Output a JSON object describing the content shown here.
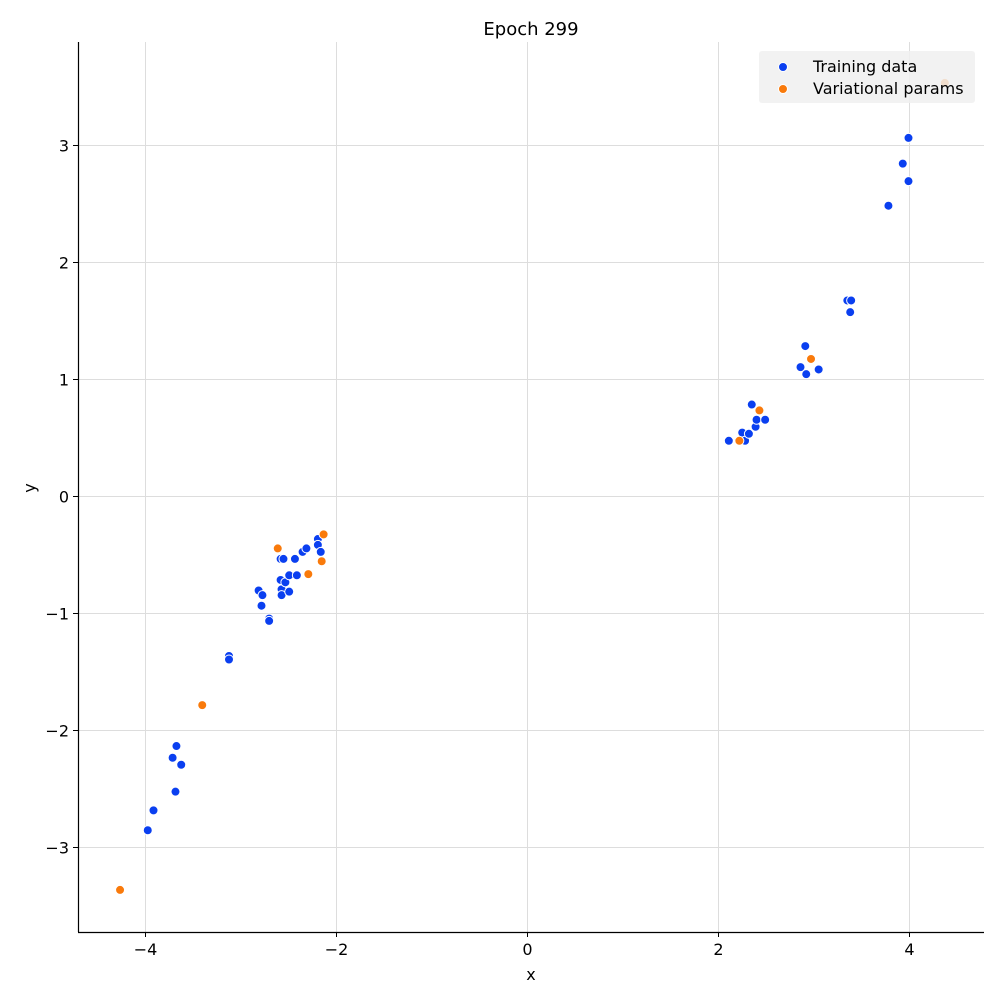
{
  "chart_data": {
    "type": "scatter",
    "title": "Epoch 299",
    "xlabel": "x",
    "ylabel": "y",
    "xlim": [
      -4.7,
      4.78
    ],
    "ylim": [
      -3.73,
      3.88
    ],
    "xticks": [
      -4,
      -2,
      0,
      2,
      4
    ],
    "yticks": [
      -3,
      -2,
      -1,
      0,
      1,
      2,
      3
    ],
    "grid": true,
    "legend_position": "top-right",
    "series": [
      {
        "name": "Training data",
        "color": "#0a3ff0",
        "points": [
          [
            -3.97,
            -2.86
          ],
          [
            -3.91,
            -2.69
          ],
          [
            -3.68,
            -2.53
          ],
          [
            -3.71,
            -2.24
          ],
          [
            -3.67,
            -2.14
          ],
          [
            -3.62,
            -2.3
          ],
          [
            -3.12,
            -1.37
          ],
          [
            -3.12,
            -1.4
          ],
          [
            -2.7,
            -1.05
          ],
          [
            -2.7,
            -1.07
          ],
          [
            -2.81,
            -0.81
          ],
          [
            -2.77,
            -0.85
          ],
          [
            -2.78,
            -0.94
          ],
          [
            -2.58,
            -0.72
          ],
          [
            -2.57,
            -0.8
          ],
          [
            -2.57,
            -0.85
          ],
          [
            -2.53,
            -0.74
          ],
          [
            -2.49,
            -0.68
          ],
          [
            -2.49,
            -0.82
          ],
          [
            -2.41,
            -0.68
          ],
          [
            -2.58,
            -0.54
          ],
          [
            -2.55,
            -0.54
          ],
          [
            -2.43,
            -0.54
          ],
          [
            -2.35,
            -0.48
          ],
          [
            -2.31,
            -0.45
          ],
          [
            -2.19,
            -0.37
          ],
          [
            -2.19,
            -0.42
          ],
          [
            -2.16,
            -0.48
          ],
          [
            2.11,
            0.47
          ],
          [
            2.25,
            0.54
          ],
          [
            2.28,
            0.47
          ],
          [
            2.32,
            0.53
          ],
          [
            2.35,
            0.78
          ],
          [
            2.39,
            0.59
          ],
          [
            2.4,
            0.65
          ],
          [
            2.49,
            0.65
          ],
          [
            2.86,
            1.1
          ],
          [
            2.91,
            1.28
          ],
          [
            2.92,
            1.04
          ],
          [
            3.05,
            1.08
          ],
          [
            3.35,
            1.67
          ],
          [
            3.39,
            1.67
          ],
          [
            3.38,
            1.57
          ],
          [
            3.78,
            2.48
          ],
          [
            3.93,
            2.84
          ],
          [
            3.99,
            3.06
          ],
          [
            3.99,
            2.69
          ]
        ]
      },
      {
        "name": "Variational params",
        "color": "#f97a0b",
        "points": [
          [
            -4.26,
            -3.37
          ],
          [
            -3.4,
            -1.79
          ],
          [
            -2.61,
            -0.45
          ],
          [
            -2.29,
            -0.67
          ],
          [
            -2.15,
            -0.56
          ],
          [
            -2.13,
            -0.33
          ],
          [
            2.22,
            0.47
          ],
          [
            2.43,
            0.73
          ],
          [
            2.97,
            1.17
          ],
          [
            4.37,
            3.53
          ]
        ]
      }
    ]
  }
}
